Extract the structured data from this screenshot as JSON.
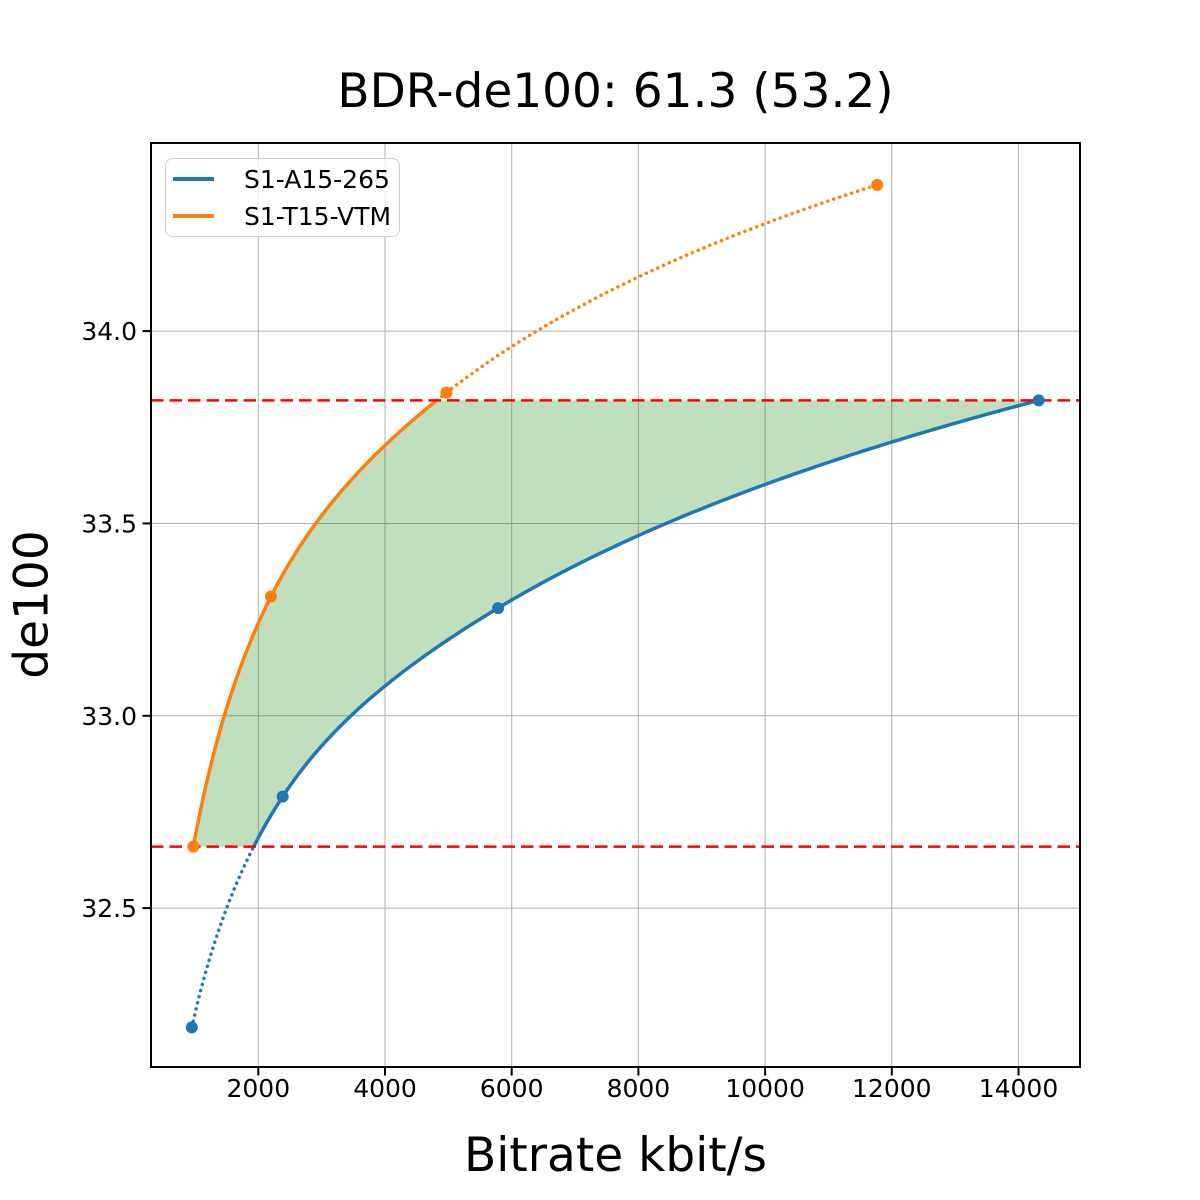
{
  "chart_data": {
    "type": "line",
    "title": "BDR-de100: 61.3 (53.2)",
    "xlabel": "Bitrate kbit/s",
    "ylabel": "de100",
    "xlim": [
      306,
      14971
    ],
    "ylim": [
      32.087,
      34.489
    ],
    "xticks": [
      2000,
      4000,
      6000,
      8000,
      10000,
      12000,
      14000
    ],
    "yticks": [
      32.5,
      33.0,
      33.5,
      34.0
    ],
    "grid": true,
    "grid_color": "#b0b0b0",
    "legend_position": "upper left",
    "series": [
      {
        "name": "S1-A15-265",
        "color": "#1f77b4",
        "x": [
          950,
          2385,
          5785,
          14320
        ],
        "y": [
          32.19,
          32.79,
          33.28,
          33.82
        ]
      },
      {
        "name": "S1-T15-VTM",
        "color": "#ff7f0e",
        "x": [
          975,
          2200,
          4970,
          11770
        ],
        "y": [
          32.66,
          33.31,
          33.84,
          34.38
        ]
      }
    ],
    "overlap_lines": {
      "lower": 32.66,
      "upper": 33.82,
      "color": "#ff0000",
      "style": "dashed"
    },
    "fill_between": {
      "color": "#008000",
      "alpha": 0.25
    }
  }
}
